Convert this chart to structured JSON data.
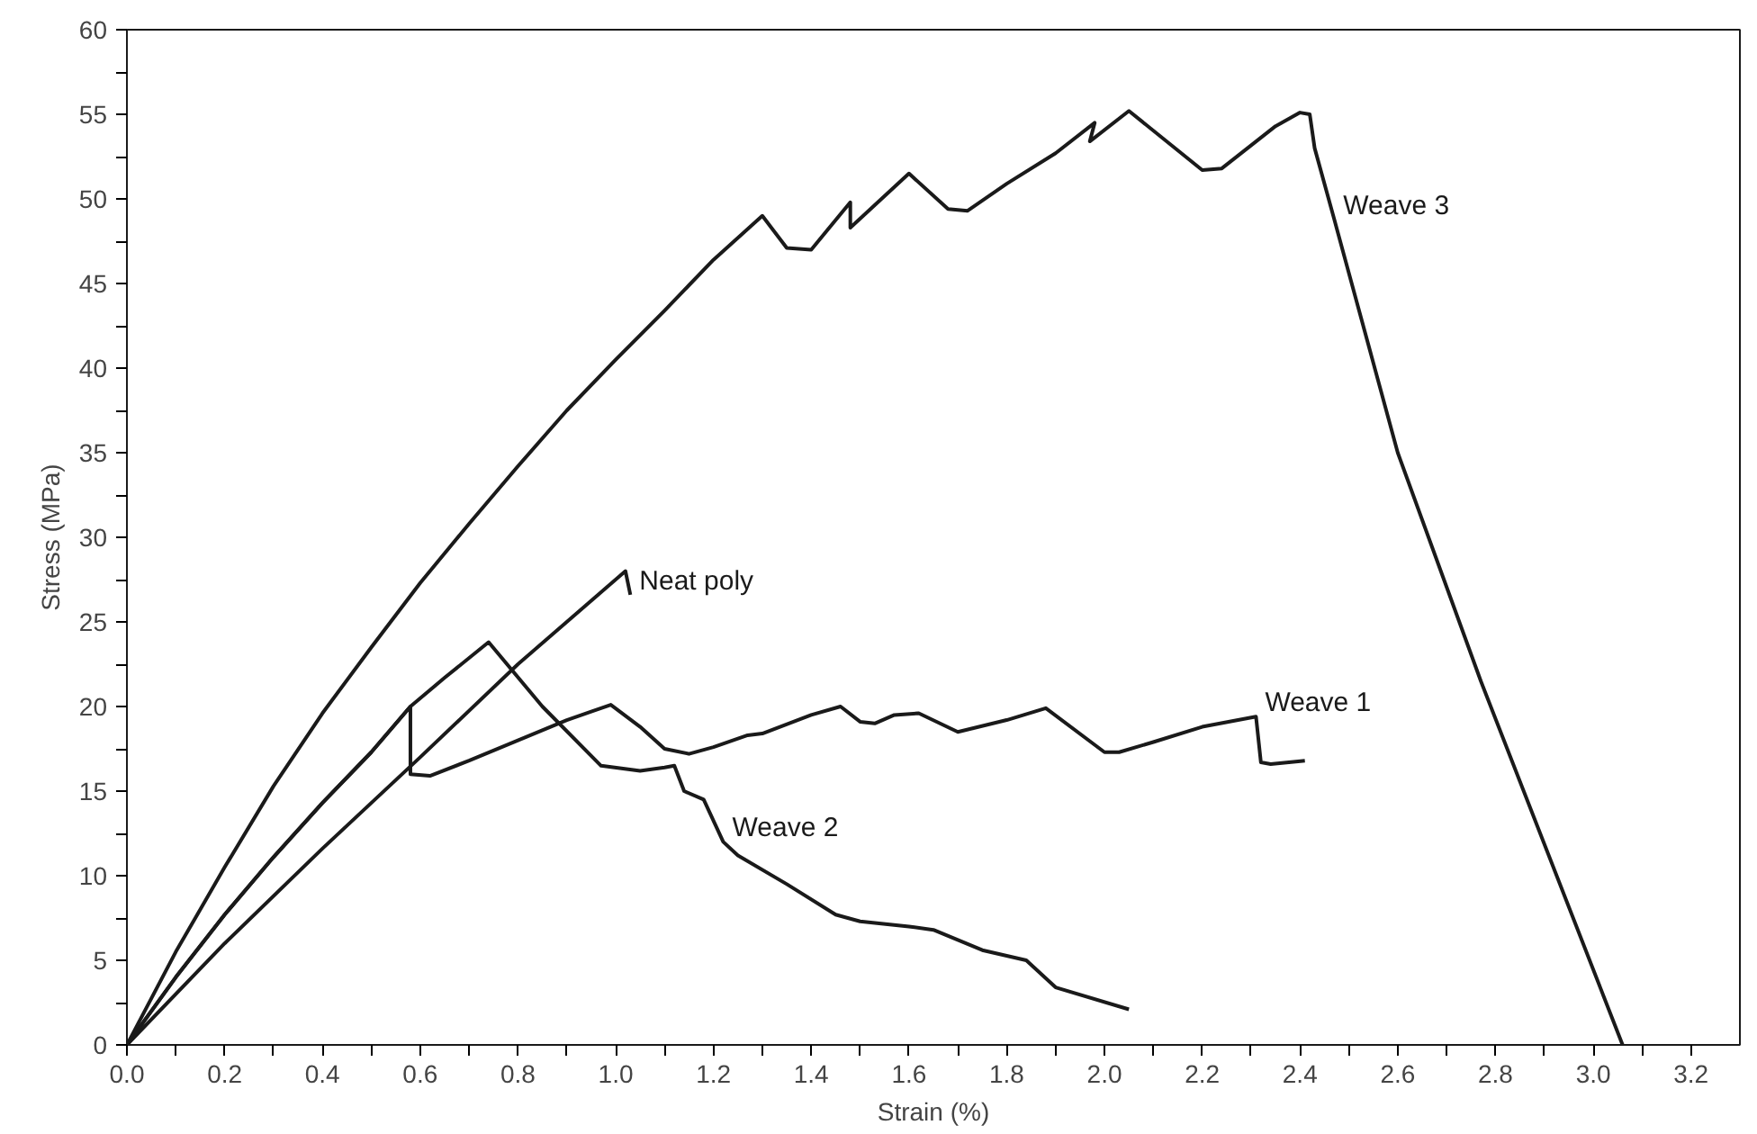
{
  "chart_data": {
    "type": "line",
    "xlabel": "Strain (%)",
    "ylabel": "Stress (MPa)",
    "xlim": [
      0,
      3.3
    ],
    "ylim": [
      0,
      60
    ],
    "xticks": [
      {
        "value": 0,
        "label": "0.0"
      },
      {
        "value": 0.1,
        "label": null
      },
      {
        "value": 0.2,
        "label": "0.2"
      },
      {
        "value": 0.3,
        "label": null
      },
      {
        "value": 0.4,
        "label": "0.4"
      },
      {
        "value": 0.5,
        "label": null
      },
      {
        "value": 0.6,
        "label": "0.6"
      },
      {
        "value": 0.7,
        "label": null
      },
      {
        "value": 0.8,
        "label": "0.8"
      },
      {
        "value": 0.9,
        "label": null
      },
      {
        "value": 1.0,
        "label": "1.0"
      },
      {
        "value": 1.1,
        "label": null
      },
      {
        "value": 1.2,
        "label": "1.2"
      },
      {
        "value": 1.3,
        "label": null
      },
      {
        "value": 1.4,
        "label": "1.4"
      },
      {
        "value": 1.5,
        "label": null
      },
      {
        "value": 1.6,
        "label": "1.6"
      },
      {
        "value": 1.7,
        "label": null
      },
      {
        "value": 1.8,
        "label": "1.8"
      },
      {
        "value": 1.9,
        "label": null
      },
      {
        "value": 2.0,
        "label": "2.0"
      },
      {
        "value": 2.1,
        "label": null
      },
      {
        "value": 2.2,
        "label": "2.2"
      },
      {
        "value": 2.3,
        "label": null
      },
      {
        "value": 2.4,
        "label": "2.4"
      },
      {
        "value": 2.5,
        "label": null
      },
      {
        "value": 2.6,
        "label": "2.6"
      },
      {
        "value": 2.7,
        "label": null
      },
      {
        "value": 2.8,
        "label": "2.8"
      },
      {
        "value": 2.9,
        "label": null
      },
      {
        "value": 3.0,
        "label": "3.0"
      },
      {
        "value": 3.1,
        "label": null
      },
      {
        "value": 3.2,
        "label": "3.2"
      }
    ],
    "yticks": [
      0,
      {
        "value": 2.5,
        "label": null
      },
      5,
      {
        "value": 7.5,
        "label": null
      },
      10,
      {
        "value": 12.5,
        "label": null
      },
      15,
      {
        "value": 17.5,
        "label": null
      },
      20,
      {
        "value": 22.5,
        "label": null
      },
      25,
      {
        "value": 27.5,
        "label": null
      },
      30,
      {
        "value": 32.5,
        "label": null
      },
      35,
      {
        "value": 37.5,
        "label": null
      },
      40,
      {
        "value": 42.5,
        "label": null
      },
      45,
      {
        "value": 47.5,
        "label": null
      },
      50,
      {
        "value": 52.5,
        "label": null
      },
      55,
      {
        "value": 57.5,
        "label": null
      },
      60
    ],
    "grid": false,
    "marker": "none",
    "line_style": "solid",
    "series": [
      {
        "color": "#1a1a1a",
        "x": [
          0,
          0.2,
          0.4,
          0.6,
          0.8,
          1.02,
          1.03
        ],
        "values": [
          0,
          6,
          11.6,
          17,
          22.5,
          28,
          26.6
        ]
      },
      {
        "color": "#1a1a1a",
        "x": [
          0,
          0.1,
          0.2,
          0.3,
          0.4,
          0.5,
          0.58,
          0.58,
          0.62,
          0.7,
          0.8,
          0.9,
          0.95,
          0.99,
          1.05,
          1.1,
          1.15,
          1.2,
          1.27,
          1.3,
          1.4,
          1.46,
          1.5,
          1.53,
          1.57,
          1.62,
          1.7,
          1.8,
          1.88,
          2.0,
          2.03,
          2.1,
          2.2,
          2.31,
          2.32,
          2.34,
          2.41
        ],
        "values": [
          0,
          4,
          7.7,
          11.1,
          14.3,
          17.3,
          20,
          16,
          15.9,
          16.8,
          18,
          19.2,
          19.7,
          20.1,
          18.8,
          17.5,
          17.2,
          17.6,
          18.3,
          18.4,
          19.5,
          20,
          19.1,
          19,
          19.5,
          19.6,
          18.5,
          19.2,
          19.9,
          17.3,
          17.3,
          17.9,
          18.8,
          19.4,
          16.7,
          16.6,
          16.8
        ]
      },
      {
        "color": "#1a1a1a",
        "x": [
          0,
          0.1,
          0.2,
          0.3,
          0.4,
          0.5,
          0.58,
          0.65,
          0.74,
          0.85,
          0.97,
          1.05,
          1.1,
          1.12,
          1.14,
          1.18,
          1.22,
          1.25,
          1.35,
          1.45,
          1.5,
          1.6,
          1.65,
          1.75,
          1.84,
          1.9,
          2.05
        ],
        "values": [
          0,
          4,
          7.7,
          11.1,
          14.3,
          17.3,
          20,
          21.7,
          23.8,
          20,
          16.5,
          16.2,
          16.4,
          16.5,
          15,
          14.5,
          12,
          11.2,
          9.5,
          7.7,
          7.3,
          7,
          6.8,
          5.6,
          5,
          3.4,
          2.1
        ]
      },
      {
        "color": "#1a1a1a",
        "x": [
          0,
          0.1,
          0.2,
          0.3,
          0.4,
          0.5,
          0.6,
          0.7,
          0.8,
          0.9,
          1.0,
          1.1,
          1.2,
          1.3,
          1.35,
          1.4,
          1.48,
          1.48,
          1.6,
          1.68,
          1.72,
          1.8,
          1.9,
          1.98,
          1.97,
          2.05,
          2.2,
          2.24,
          2.35,
          2.4,
          2.42,
          2.43,
          2.47,
          2.6,
          2.77,
          3.06
        ],
        "values": [
          0,
          5.5,
          10.5,
          15.3,
          19.6,
          23.5,
          27.3,
          30.8,
          34.2,
          37.5,
          40.5,
          43.4,
          46.4,
          49,
          47.1,
          47,
          49.8,
          48.3,
          51.5,
          49.4,
          49.3,
          50.9,
          52.7,
          54.5,
          53.4,
          55.2,
          51.7,
          51.8,
          54.3,
          55.1,
          55,
          53,
          48.8,
          35,
          21.5,
          0
        ]
      }
    ],
    "annotations": [
      {
        "text": "Neat poly",
        "x": 1.03,
        "y": 26.6
      },
      {
        "text": "Weave 1",
        "x": 2.31,
        "y": 19.4
      },
      {
        "text": "Weave 2",
        "x": 1.22,
        "y": 12
      },
      {
        "text": "Weave 3",
        "x": 2.47,
        "y": 48.8
      }
    ]
  }
}
